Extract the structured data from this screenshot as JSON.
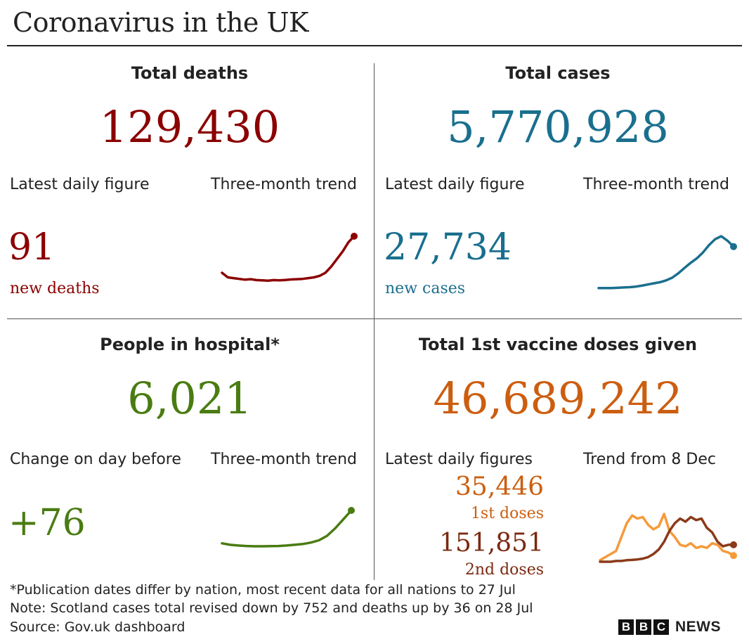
{
  "title": "Coronavirus in the UK",
  "panels": {
    "deaths": {
      "heading": "Total deaths",
      "total": "129,430",
      "latest_label": "Latest daily figure",
      "trend_label": "Three-month trend",
      "daily_value": "91",
      "daily_caption": "new deaths",
      "color": "#8b0000"
    },
    "cases": {
      "heading": "Total cases",
      "total": "5,770,928",
      "latest_label": "Latest daily figure",
      "trend_label": "Three-month trend",
      "daily_value": "27,734",
      "daily_caption": "new cases",
      "color": "#1a6f8e"
    },
    "hospital": {
      "heading": "People in hospital*",
      "total": "6,021",
      "latest_label": "Change on day before",
      "trend_label": "Three-month trend",
      "daily_value": "+76",
      "color": "#4a7c12"
    },
    "vaccine": {
      "heading": "Total 1st vaccine doses given",
      "total": "46,689,242",
      "latest_label": "Latest daily figures",
      "trend_label": "Trend from 8 Dec",
      "first_value": "35,446",
      "first_caption": "1st doses",
      "second_value": "151,851",
      "second_caption": "2nd doses",
      "first_color": "#f59a3a",
      "second_color": "#8b3a1a"
    }
  },
  "chart_data": [
    {
      "type": "line",
      "series": [
        {
          "values": [
            1.2,
            0.9,
            0.85,
            0.8,
            0.75,
            0.78,
            0.72,
            0.7,
            0.68,
            0.72,
            0.7,
            0.73,
            0.76,
            0.78,
            0.8,
            0.85,
            0.9,
            1.0,
            1.2,
            1.6,
            2.1,
            2.6,
            3.2,
            3.6
          ]
        }
      ]
    },
    {
      "type": "line",
      "series": [
        {
          "values": [
            0.1,
            0.1,
            0.1,
            0.11,
            0.12,
            0.13,
            0.15,
            0.18,
            0.22,
            0.26,
            0.3,
            0.36,
            0.45,
            0.6,
            0.78,
            0.95,
            1.1,
            1.3,
            1.55,
            1.75,
            1.85,
            1.7,
            1.5
          ]
        }
      ]
    },
    {
      "type": "line",
      "series": [
        {
          "values": [
            1.0,
            0.9,
            0.85,
            0.82,
            0.8,
            0.8,
            0.81,
            0.82,
            0.85,
            0.9,
            0.95,
            1.05,
            1.2,
            1.5,
            2.0,
            2.6,
            3.2
          ]
        }
      ]
    },
    {
      "type": "line",
      "series": [
        {
          "name": "1st doses",
          "values": [
            0.1,
            0.3,
            0.5,
            0.7,
            1.6,
            2.5,
            3.0,
            2.8,
            2.9,
            2.4,
            2.1,
            2.3,
            3.1,
            2.0,
            1.6,
            1.1,
            1.0,
            1.2,
            0.9,
            1.0,
            0.9,
            1.2,
            1.1,
            0.7,
            0.6,
            0.4
          ]
        },
        {
          "name": "2nd doses",
          "values": [
            0.0,
            0.0,
            0.0,
            0.05,
            0.05,
            0.1,
            0.12,
            0.15,
            0.2,
            0.3,
            0.5,
            0.8,
            1.3,
            2.0,
            2.5,
            2.8,
            2.6,
            2.9,
            2.7,
            2.8,
            2.2,
            1.9,
            1.3,
            1.0,
            1.1,
            1.1
          ]
        }
      ]
    }
  ],
  "footnotes": [
    "*Publication dates differ by nation, most recent data for all nations to 27 Jul",
    "Note: Scotland cases total revised down by 752 and deaths up by 36 on 28 Jul",
    "Source: Gov.uk dashboard"
  ],
  "logo": {
    "letters": [
      "B",
      "B",
      "C"
    ],
    "word": "NEWS"
  }
}
